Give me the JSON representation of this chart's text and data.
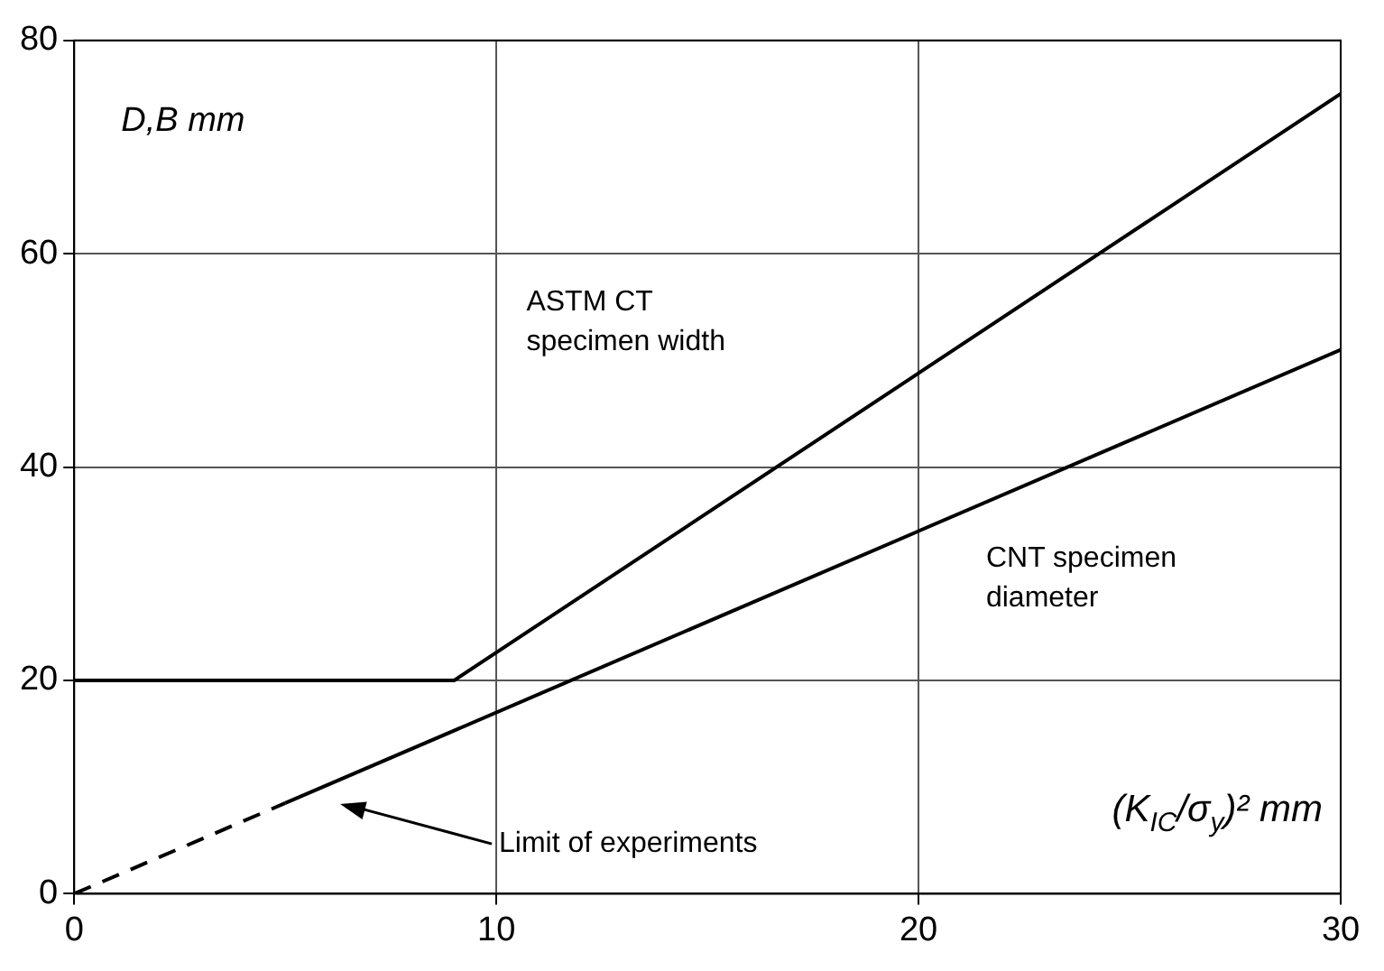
{
  "chart_data": {
    "type": "line",
    "xlabel": "(K$_{IC}$/σ$_{y}$)² mm",
    "ylabel": "D,B mm",
    "series": [
      {
        "color": "#000000",
        "x": [
          0,
          9,
          30
        ],
        "values": [
          20,
          20,
          75
        ],
        "line_style": "solid"
      },
      {
        "color": "#000000",
        "x": [
          0,
          5
        ],
        "values": [
          0,
          8.5
        ],
        "line_style": "dashed"
      },
      {
        "color": "#000000",
        "x": [
          5,
          30
        ],
        "values": [
          8.5,
          51
        ],
        "line_style": "solid"
      }
    ],
    "annotations": [
      "ASTM CT specimen width",
      "CNT specimen diameter",
      "Limit of experiments"
    ],
    "xlim": [
      0,
      30
    ],
    "xticks": [
      0,
      10,
      20,
      30
    ],
    "ylim": [
      0,
      80
    ],
    "yticks": [
      0,
      20,
      40,
      60,
      80
    ],
    "grid": true,
    "legend": false,
    "marker": "none"
  }
}
